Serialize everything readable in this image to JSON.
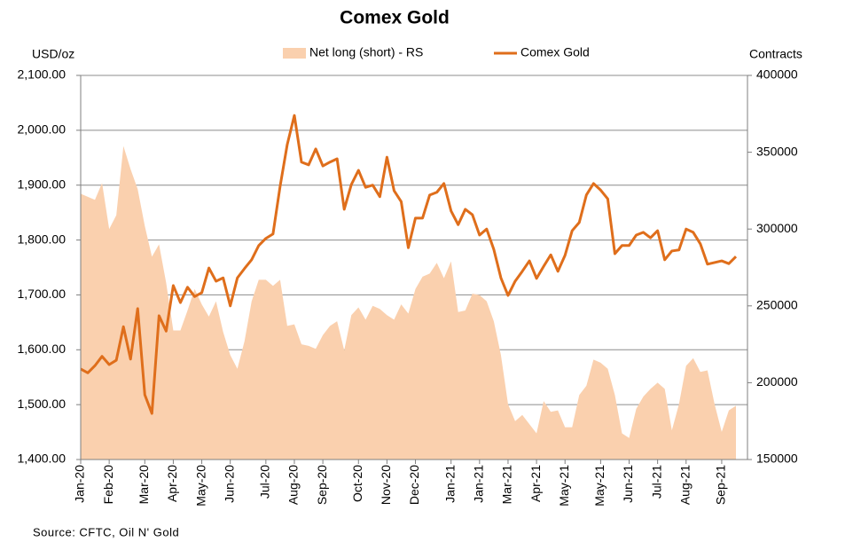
{
  "chart_data": {
    "type": "line",
    "title": "Comex Gold",
    "ylabel": "USD/oz",
    "y2label": "Contracts",
    "source": "Source: CFTC, Oil N' Gold",
    "legend": "top",
    "grid": true,
    "categories": [
      "Jan-20",
      null,
      null,
      null,
      "Feb-20",
      null,
      null,
      null,
      null,
      "Mar-20",
      null,
      null,
      null,
      "Apr-20",
      null,
      null,
      null,
      "May-20",
      null,
      null,
      null,
      "Jun-20",
      null,
      null,
      null,
      null,
      "Jul-20",
      null,
      null,
      null,
      "Aug-20",
      null,
      null,
      null,
      "Sep-20",
      null,
      null,
      null,
      null,
      "Oct-20",
      null,
      null,
      null,
      "Nov-20",
      null,
      null,
      null,
      "Dec-20",
      null,
      null,
      null,
      null,
      "Jan-21",
      null,
      null,
      null,
      "Jan-21",
      null,
      null,
      null,
      "Mar-21",
      null,
      null,
      null,
      "Apr-21",
      null,
      null,
      null,
      "May-21",
      null,
      null,
      null,
      null,
      "May-21",
      null,
      null,
      null,
      "Jun-21",
      null,
      null,
      null,
      "Jul-21",
      null,
      null,
      null,
      "Aug-21",
      null,
      null,
      null,
      null,
      "Sep-21",
      null,
      null
    ],
    "series": [
      {
        "name": "Net long (short) - RS",
        "type": "area",
        "axis": "y2",
        "color": "#fad0ae",
        "values": [
          323000,
          321000,
          319000,
          330000,
          300000,
          309000,
          354000,
          339000,
          326000,
          302000,
          282000,
          290000,
          265000,
          234000,
          234000,
          247000,
          261000,
          251000,
          243000,
          253000,
          233000,
          218000,
          209000,
          227000,
          253000,
          267000,
          267000,
          263000,
          267000,
          237000,
          238000,
          225000,
          224000,
          222000,
          231000,
          237000,
          240000,
          221000,
          244000,
          249000,
          241000,
          250000,
          248000,
          244000,
          241000,
          251000,
          245000,
          261000,
          269000,
          271000,
          278000,
          268000,
          279000,
          246000,
          247000,
          258000,
          257000,
          253000,
          240000,
          218000,
          186000,
          175000,
          179000,
          173000,
          167000,
          188000,
          181000,
          182000,
          171000,
          171000,
          192000,
          198000,
          215000,
          213000,
          209000,
          192000,
          167000,
          164000,
          183000,
          191000,
          196000,
          200000,
          196000,
          169000,
          186000,
          211000,
          216000,
          207000,
          208000,
          186000,
          168000,
          182000,
          185000
        ]
      },
      {
        "name": "Comex Gold",
        "type": "line",
        "axis": "y",
        "color": "#df6e1b",
        "values": [
          1565,
          1558,
          1571,
          1588,
          1573,
          1581,
          1642,
          1583,
          1675,
          1518,
          1484,
          1662,
          1634,
          1717,
          1686,
          1714,
          1697,
          1704,
          1749,
          1725,
          1731,
          1680,
          1731,
          1748,
          1764,
          1790,
          1803,
          1811,
          1898,
          1974,
          2027,
          1942,
          1937,
          1966,
          1935,
          1942,
          1948,
          1856,
          1901,
          1927,
          1896,
          1900,
          1879,
          1951,
          1890,
          1870,
          1786,
          1840,
          1840,
          1882,
          1887,
          1903,
          1853,
          1828,
          1856,
          1846,
          1809,
          1820,
          1783,
          1731,
          1699,
          1725,
          1743,
          1762,
          1730,
          1752,
          1773,
          1743,
          1772,
          1817,
          1832,
          1882,
          1903,
          1891,
          1875,
          1775,
          1790,
          1790,
          1809,
          1814,
          1804,
          1817,
          1764,
          1780,
          1782,
          1820,
          1814,
          1793,
          1756,
          1759,
          1762,
          1757,
          1770
        ]
      }
    ],
    "ylim": [
      1400,
      2100
    ],
    "yticks": [
      {
        "value": 1400,
        "label": "1,400.00"
      },
      {
        "value": 1500,
        "label": "1,500.00"
      },
      {
        "value": 1600,
        "label": "1,600.00"
      },
      {
        "value": 1700,
        "label": "1,700.00"
      },
      {
        "value": 1800,
        "label": "1,800.00"
      },
      {
        "value": 1900,
        "label": "1,900.00"
      },
      {
        "value": 2000,
        "label": "2,000.00"
      },
      {
        "value": 2100,
        "label": "2,100.00"
      }
    ],
    "y2lim": [
      150000,
      400000
    ],
    "y2ticks": [
      150000,
      200000,
      250000,
      300000,
      350000,
      400000
    ]
  }
}
